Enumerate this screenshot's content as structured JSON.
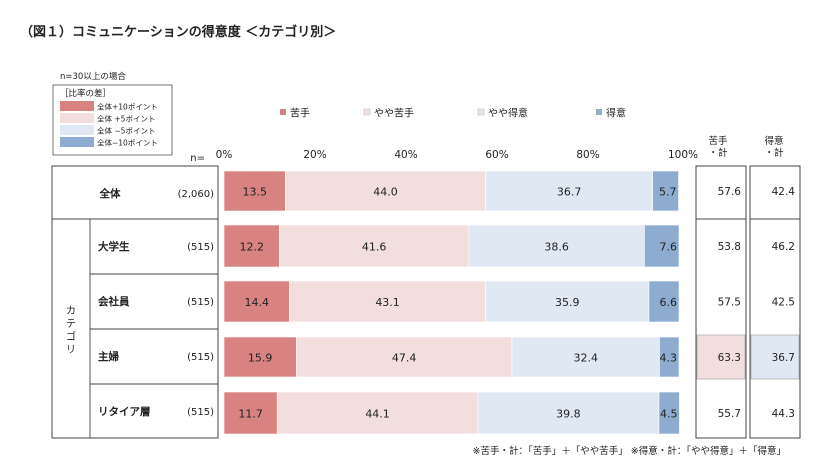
{
  "chart_data": {
    "type": "bar",
    "stacked": true,
    "orientation": "horizontal",
    "title": "（図１）コミュニケーションの得意度 ＜カテゴリ別＞",
    "note_threshold": "n=30以上の場合",
    "diff_legend": {
      "title": "［比率の差］",
      "items": [
        {
          "label": "全体+10ポイント",
          "color": "#d98282"
        },
        {
          "label": "全体 +5ポイント",
          "color": "#f3dede"
        },
        {
          "label": "全体 −5ポイント",
          "color": "#dfe8f3"
        },
        {
          "label": "全体−10ポイント",
          "color": "#8eacd0"
        }
      ]
    },
    "series": [
      {
        "name": "苦手",
        "color": "#d98282",
        "values": [
          13.5,
          12.2,
          14.4,
          15.9,
          11.7
        ]
      },
      {
        "name": "やや苦手",
        "color": "#f3dede",
        "values": [
          44.0,
          41.6,
          43.1,
          47.4,
          44.1
        ]
      },
      {
        "name": "やや得意",
        "color": "#dfe8f3",
        "values": [
          36.7,
          38.6,
          35.9,
          32.4,
          39.8
        ]
      },
      {
        "name": "得意",
        "color": "#8eacd0",
        "values": [
          5.7,
          7.6,
          6.6,
          4.3,
          4.5
        ]
      }
    ],
    "categories": [
      "全体",
      "大学生",
      "会社員",
      "主婦",
      "リタイア層"
    ],
    "category_group_label": "カテゴリ",
    "n_label": "n=",
    "n_values": [
      "(2,060)",
      "(515)",
      "(515)",
      "(515)",
      "(515)"
    ],
    "axis": {
      "min": 0,
      "max": 100,
      "ticks": [
        "0%",
        "20%",
        "40%",
        "60%",
        "80%",
        "100%"
      ]
    },
    "summary_headers": {
      "nigate": "苦手\n・計",
      "tokui": "得意\n・計"
    },
    "nigate_total": [
      57.6,
      53.8,
      57.5,
      63.3,
      55.7
    ],
    "tokui_total": [
      42.4,
      46.2,
      42.5,
      36.7,
      44.3
    ],
    "highlight_colors": {
      "up": "#f3dede",
      "down": "#dfe8f3"
    },
    "highlights": {
      "nigate": [
        null,
        null,
        null,
        "up",
        null
      ],
      "tokui": [
        null,
        null,
        null,
        "down",
        null
      ]
    },
    "footnote": "※苦手・計：「苦手」＋「やや苦手」 ※得意・計：「やや得意」＋「得意」"
  }
}
